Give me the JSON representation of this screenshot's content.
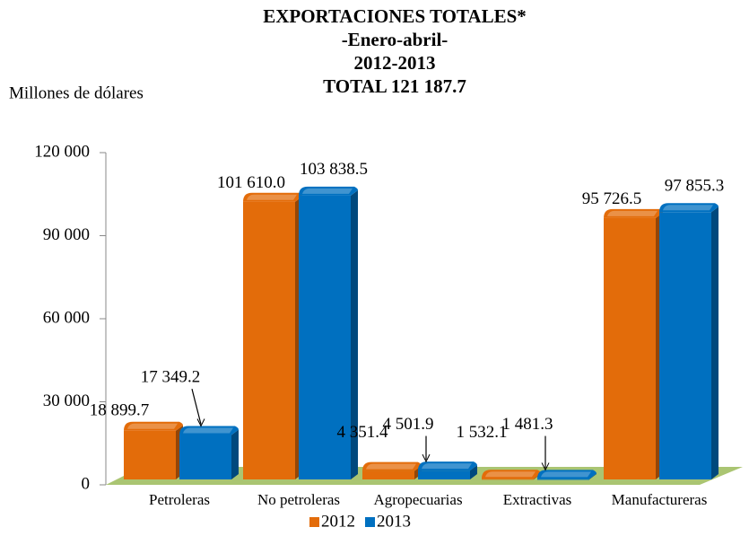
{
  "chart_data": {
    "type": "bar",
    "title": "EXPORTACIONES TOTALES*",
    "subtitle": [
      "-Enero-abril-",
      "2012-2013",
      "TOTAL 121 187.7"
    ],
    "y_axis_label": "Millones de dólares",
    "categories": [
      "Petroleras",
      "No petroleras",
      "Agropecuarias",
      "Extractivas",
      "Manufactureras"
    ],
    "series": [
      {
        "name": "2012",
        "color": "#e36c0a",
        "values": [
          18899.7,
          101610.0,
          4351.4,
          1532.1,
          95726.5
        ],
        "value_labels": [
          "18 899.7",
          "101 610.0",
          "4 351.4",
          "1 532.1",
          "95 726.5"
        ]
      },
      {
        "name": "2013",
        "color": "#0070c0",
        "values": [
          17349.2,
          103838.5,
          4501.9,
          1481.3,
          97855.3
        ],
        "value_labels": [
          "17 349.2",
          "103 838.5",
          "4 501.9",
          "1 481.3",
          "97 855.3"
        ]
      }
    ],
    "ylim": [
      0,
      120000
    ],
    "yticks": [
      0,
      {
        "value": 30000,
        "label": "30 000"
      },
      {
        "value": 60000,
        "label": "60 000"
      },
      {
        "value": 90000,
        "label": "90 000"
      },
      {
        "value": 120000,
        "label": "120 000"
      }
    ],
    "legend": "bottom"
  }
}
